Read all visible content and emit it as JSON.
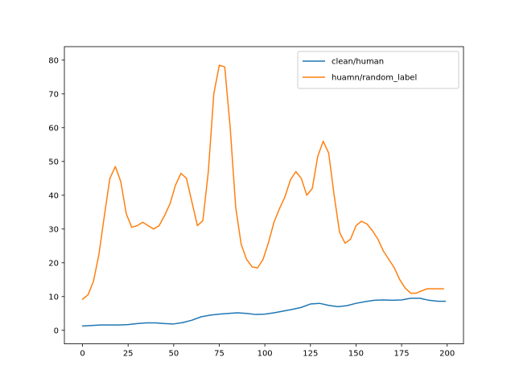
{
  "chart_data": {
    "type": "line",
    "xlim": [
      -9.95,
      208.95
    ],
    "ylim": [
      -4,
      84
    ],
    "x_ticks": [
      0,
      25,
      50,
      75,
      100,
      125,
      150,
      175,
      200
    ],
    "y_ticks": [
      0,
      10,
      20,
      30,
      40,
      50,
      60,
      70,
      80
    ],
    "grid": false,
    "legend_position": "top-right",
    "series": [
      {
        "name": "clean/human",
        "color": "#1f77b4",
        "x": [
          0,
          10,
          20,
          25,
          30,
          35,
          40,
          45,
          50,
          55,
          60,
          65,
          70,
          75,
          80,
          85,
          90,
          95,
          100,
          105,
          110,
          115,
          120,
          125,
          130,
          135,
          140,
          145,
          150,
          155,
          160,
          165,
          170,
          175,
          180,
          185,
          190,
          195,
          199
        ],
        "y": [
          1.3,
          1.6,
          1.6,
          1.7,
          2.0,
          2.2,
          2.2,
          2.0,
          1.9,
          2.3,
          3.0,
          4.0,
          4.5,
          4.8,
          5.0,
          5.2,
          5.0,
          4.7,
          4.8,
          5.2,
          5.7,
          6.2,
          6.8,
          7.8,
          8.0,
          7.4,
          7.0,
          7.3,
          8.0,
          8.5,
          8.9,
          9.0,
          8.9,
          9.0,
          9.5,
          9.5,
          8.9,
          8.6,
          8.6
        ]
      },
      {
        "name": "huamn/random_label",
        "color": "#ff7f0e",
        "x": [
          0,
          3,
          6,
          9,
          12,
          15,
          18,
          21,
          24,
          27,
          30,
          33,
          36,
          39,
          42,
          45,
          48,
          51,
          54,
          57,
          60,
          63,
          66,
          69,
          72,
          75,
          78,
          81,
          84,
          87,
          90,
          93,
          96,
          99,
          102,
          105,
          108,
          111,
          114,
          117,
          120,
          123,
          126,
          129,
          132,
          135,
          138,
          141,
          144,
          147,
          150,
          153,
          156,
          159,
          162,
          165,
          168,
          171,
          174,
          177,
          180,
          183,
          186,
          189,
          192,
          195,
          198
        ],
        "y": [
          9.2,
          10.5,
          14.5,
          22.5,
          34.0,
          45.0,
          48.5,
          44.0,
          34.5,
          30.5,
          31.0,
          32.0,
          31.0,
          30.0,
          31.0,
          34.0,
          37.5,
          43.0,
          46.5,
          45.0,
          38.0,
          31.0,
          32.5,
          47.0,
          70.0,
          78.5,
          78.0,
          60.0,
          36.5,
          25.5,
          21.0,
          18.8,
          18.5,
          21.0,
          26.0,
          32.0,
          36.0,
          39.5,
          44.5,
          47.0,
          45.0,
          40.0,
          42.0,
          51.5,
          56.0,
          52.5,
          40.0,
          29.0,
          25.8,
          27.0,
          31.0,
          32.3,
          31.5,
          29.5,
          27.0,
          23.5,
          21.0,
          18.5,
          15.0,
          12.5,
          11.0,
          11.0,
          11.7,
          12.3,
          12.3,
          12.3,
          12.3
        ]
      }
    ]
  }
}
